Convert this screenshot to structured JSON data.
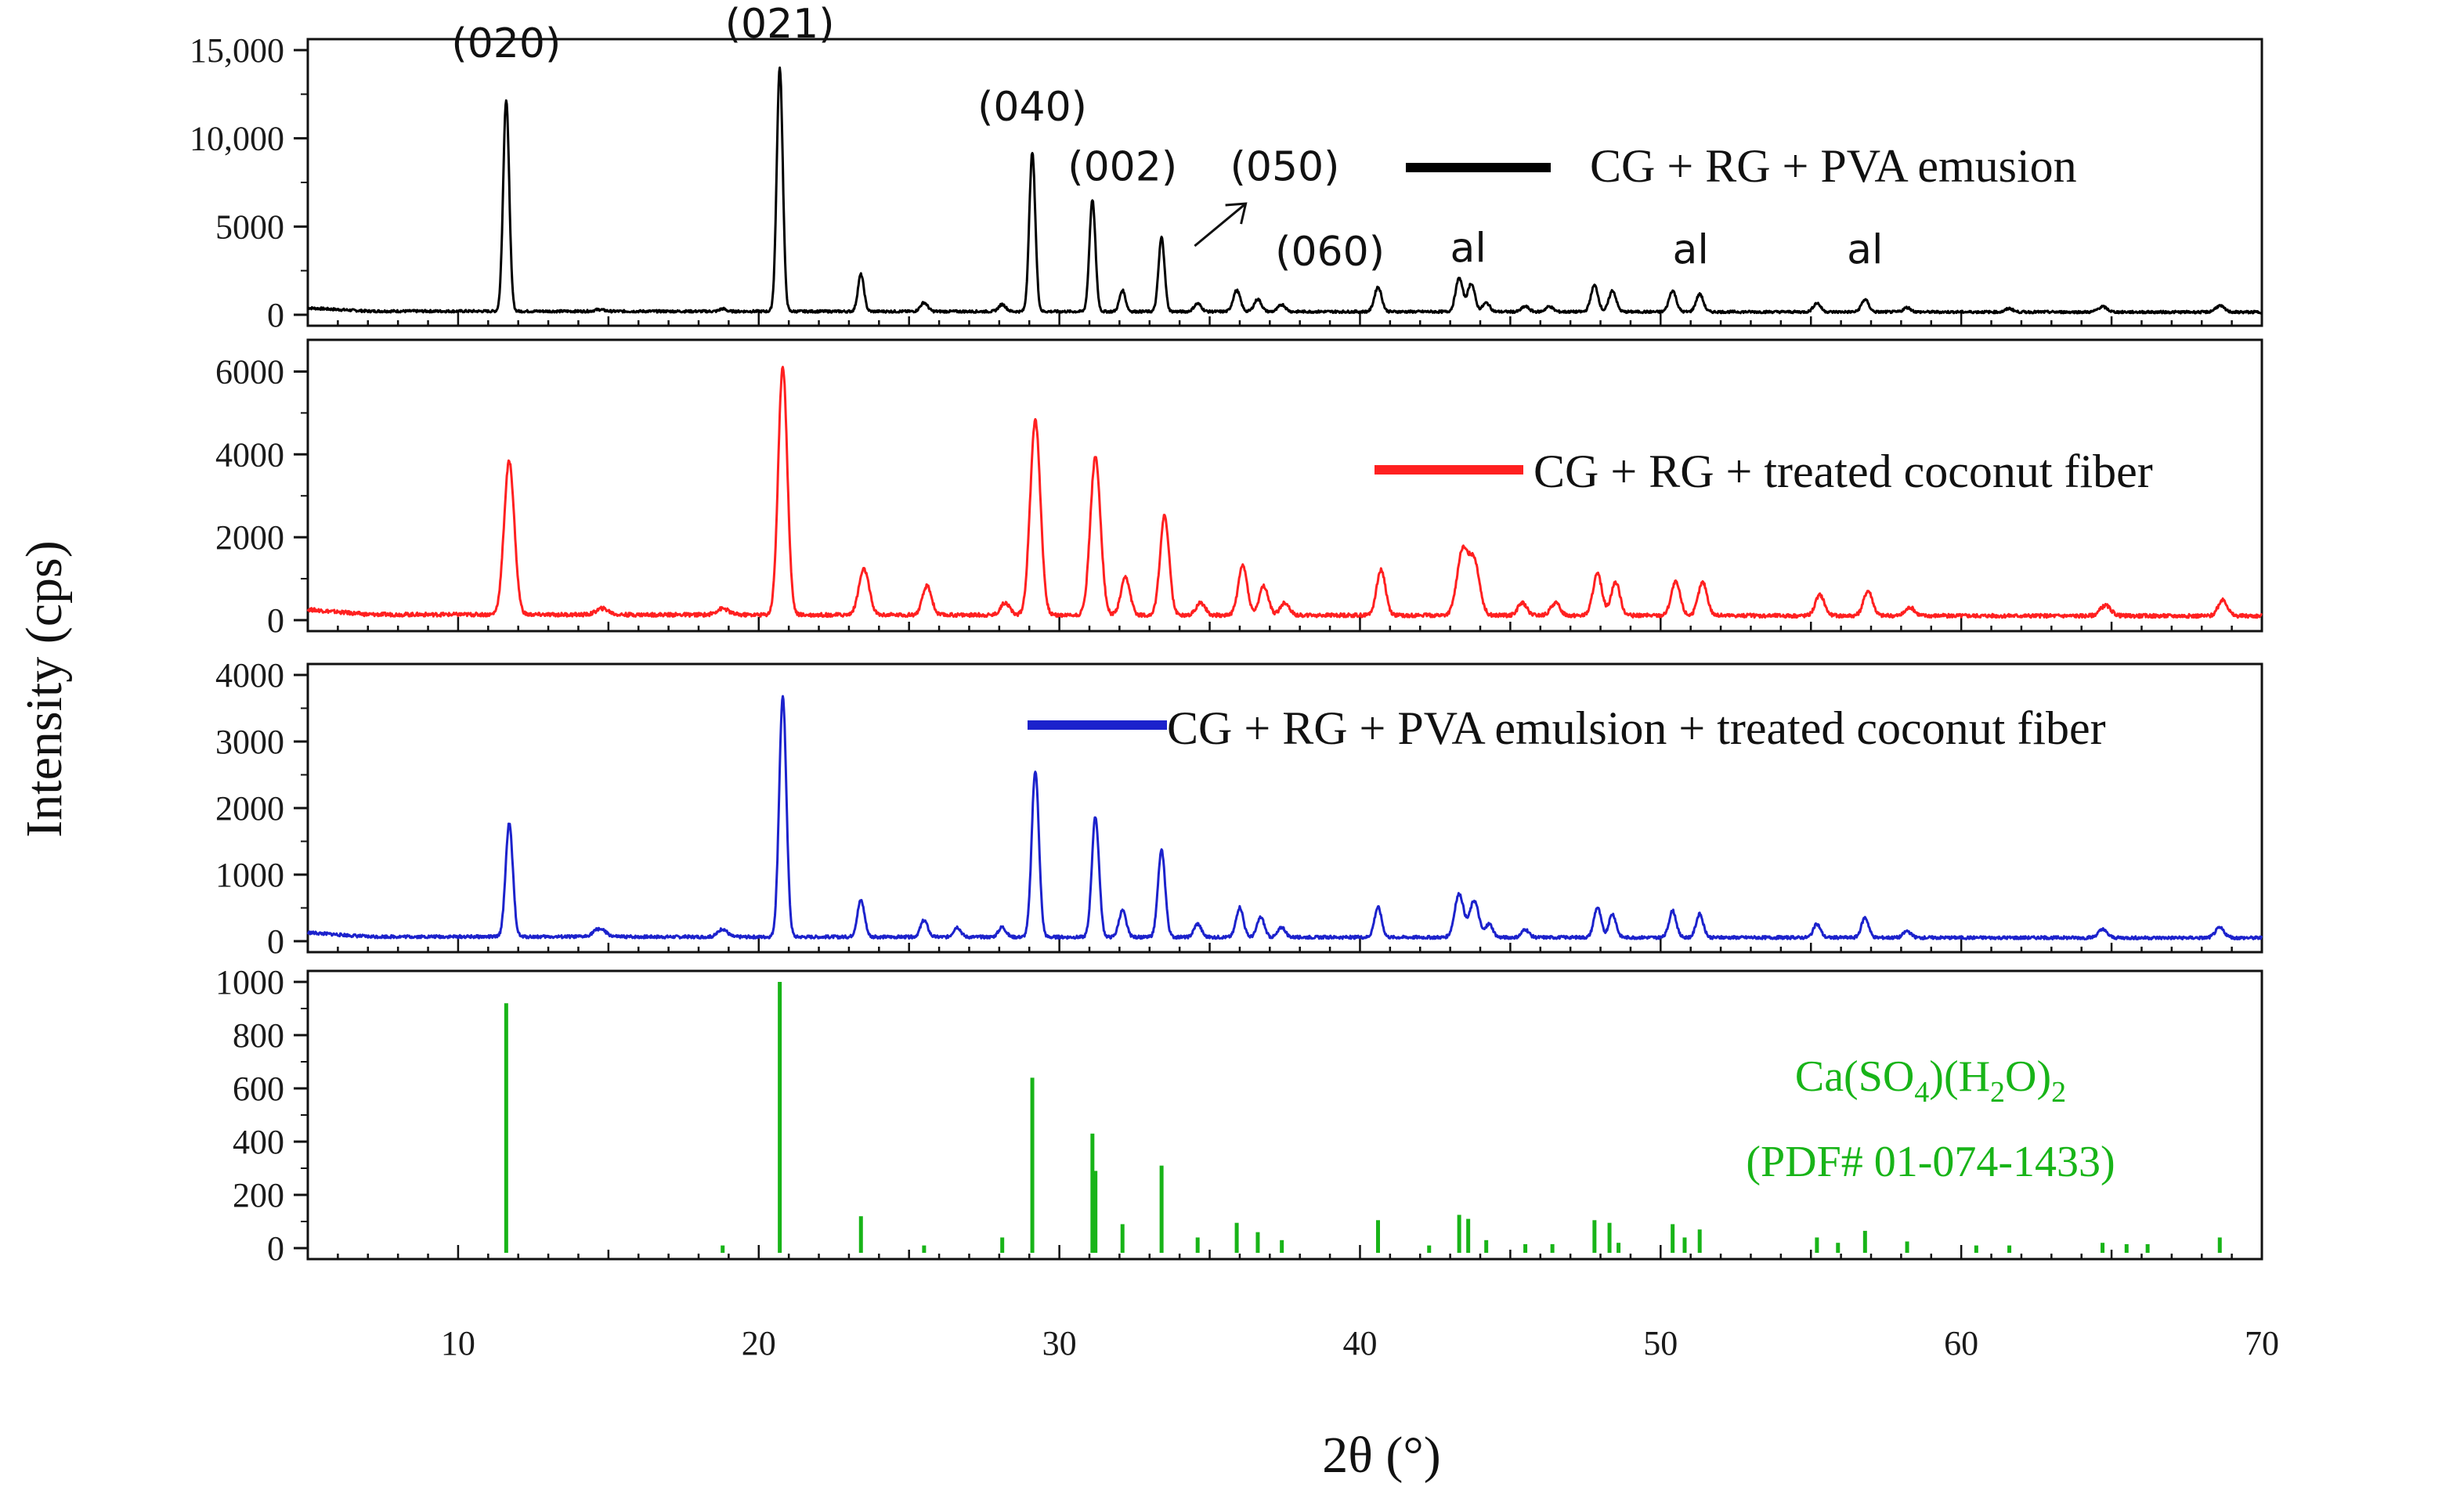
{
  "chart_data": {
    "type": "line",
    "title": "",
    "xlabel": "2θ (°)",
    "ylabel": "Intensity (cps)",
    "xlim": [
      5,
      70
    ],
    "x_ticks": [
      "10",
      "20",
      "30",
      "40",
      "50",
      "60",
      "70"
    ],
    "colors": {
      "cg_rg_pva": "#000000",
      "cg_rg_fiber": "#ff2020",
      "cg_rg_pva_fiber": "#1c22cc",
      "reference": "#18b418"
    },
    "panels": [
      {
        "id": "cg_rg_pva",
        "legend": "CG + RG + PVA emusion",
        "ylim": [
          0,
          15000
        ],
        "y_ticks": [
          "0",
          "5000",
          "10,000",
          "15,000"
        ],
        "y_tick_values": [
          0,
          5000,
          10000,
          15000
        ],
        "baseline": 150,
        "peaks": [
          [
            11.6,
            12000,
            0.1
          ],
          [
            14.7,
            100,
            0.15
          ],
          [
            18.8,
            150,
            0.1
          ],
          [
            20.7,
            13800,
            0.1
          ],
          [
            23.4,
            2100,
            0.1
          ],
          [
            25.5,
            500,
            0.12
          ],
          [
            28.1,
            400,
            0.12
          ],
          [
            29.1,
            9000,
            0.1
          ],
          [
            31.1,
            6300,
            0.1
          ],
          [
            32.1,
            1200,
            0.1
          ],
          [
            33.4,
            4200,
            0.1
          ],
          [
            34.6,
            450,
            0.12
          ],
          [
            35.9,
            1200,
            0.12
          ],
          [
            36.6,
            700,
            0.12
          ],
          [
            37.4,
            400,
            0.12
          ],
          [
            40.6,
            1400,
            0.12
          ],
          [
            43.3,
            1900,
            0.12
          ],
          [
            43.7,
            1600,
            0.12
          ],
          [
            44.2,
            500,
            0.12
          ],
          [
            45.5,
            300,
            0.12
          ],
          [
            46.3,
            300,
            0.12
          ],
          [
            47.8,
            1500,
            0.12
          ],
          [
            48.4,
            1200,
            0.12
          ],
          [
            50.4,
            1200,
            0.12
          ],
          [
            51.3,
            1000,
            0.12
          ],
          [
            55.2,
            500,
            0.12
          ],
          [
            56.8,
            700,
            0.12
          ],
          [
            58.2,
            250,
            0.12
          ],
          [
            61.6,
            200,
            0.12
          ],
          [
            64.7,
            300,
            0.15
          ],
          [
            68.6,
            350,
            0.15
          ]
        ],
        "annotations": [
          {
            "label": "(020)",
            "x": 11.6,
            "y": 14600
          },
          {
            "label": "(021)",
            "x": 20.7,
            "y": 15700
          },
          {
            "label": "(040)",
            "x": 29.1,
            "y": 11000
          },
          {
            "label": "(002)",
            "x": 32.1,
            "y": 7600
          },
          {
            "label": "(050)",
            "x": 37.5,
            "y": 7600
          },
          {
            "label": "(060)",
            "x": 39.0,
            "y": 2800
          },
          {
            "label": "al",
            "x": 43.6,
            "y": 3000
          },
          {
            "label": "al",
            "x": 51.0,
            "y": 2900
          },
          {
            "label": "al",
            "x": 56.8,
            "y": 2900
          }
        ]
      },
      {
        "id": "cg_rg_fiber",
        "legend": "CG + RG + treated coconut fiber",
        "ylim": [
          0,
          6500
        ],
        "y_ticks": [
          "0",
          "2000",
          "4000",
          "6000"
        ],
        "y_tick_values": [
          0,
          2000,
          4000,
          6000
        ],
        "baseline": 100,
        "peaks": [
          [
            11.7,
            3700,
            0.17
          ],
          [
            14.8,
            150,
            0.2
          ],
          [
            18.8,
            150,
            0.2
          ],
          [
            20.8,
            6000,
            0.15
          ],
          [
            23.5,
            1100,
            0.17
          ],
          [
            25.6,
            700,
            0.15
          ],
          [
            28.2,
            300,
            0.15
          ],
          [
            29.2,
            4700,
            0.17
          ],
          [
            31.2,
            3800,
            0.17
          ],
          [
            32.2,
            900,
            0.15
          ],
          [
            33.5,
            2400,
            0.15
          ],
          [
            34.7,
            300,
            0.15
          ],
          [
            36.1,
            1200,
            0.15
          ],
          [
            36.8,
            700,
            0.15
          ],
          [
            37.5,
            300,
            0.15
          ],
          [
            40.7,
            1100,
            0.15
          ],
          [
            43.4,
            1500,
            0.18
          ],
          [
            43.8,
            1300,
            0.18
          ],
          [
            45.4,
            300,
            0.15
          ],
          [
            46.5,
            300,
            0.15
          ],
          [
            47.9,
            1000,
            0.15
          ],
          [
            48.5,
            800,
            0.15
          ],
          [
            50.5,
            800,
            0.15
          ],
          [
            51.4,
            800,
            0.15
          ],
          [
            55.3,
            500,
            0.15
          ],
          [
            56.9,
            600,
            0.15
          ],
          [
            58.3,
            200,
            0.15
          ],
          [
            64.8,
            250,
            0.18
          ],
          [
            68.7,
            400,
            0.15
          ]
        ]
      },
      {
        "id": "cg_rg_pva_fiber",
        "legend": "CG + RG + PVA emulsion + treated coconut fiber",
        "ylim": [
          0,
          4000
        ],
        "y_ticks": [
          "0",
          "1000",
          "2000",
          "3000",
          "4000"
        ],
        "y_tick_values": [
          0,
          1000,
          2000,
          3000,
          4000
        ],
        "baseline": 50,
        "peaks": [
          [
            11.7,
            1700,
            0.12
          ],
          [
            14.7,
            120,
            0.2
          ],
          [
            18.8,
            120,
            0.15
          ],
          [
            20.8,
            3600,
            0.12
          ],
          [
            23.4,
            550,
            0.12
          ],
          [
            25.5,
            250,
            0.12
          ],
          [
            26.6,
            150,
            0.12
          ],
          [
            28.1,
            150,
            0.12
          ],
          [
            29.2,
            2500,
            0.12
          ],
          [
            31.2,
            1800,
            0.12
          ],
          [
            32.1,
            400,
            0.12
          ],
          [
            33.4,
            1300,
            0.12
          ],
          [
            34.6,
            200,
            0.12
          ],
          [
            36.0,
            450,
            0.12
          ],
          [
            36.7,
            300,
            0.12
          ],
          [
            37.4,
            150,
            0.12
          ],
          [
            40.6,
            450,
            0.12
          ],
          [
            43.3,
            650,
            0.15
          ],
          [
            43.8,
            550,
            0.15
          ],
          [
            44.3,
            200,
            0.12
          ],
          [
            45.5,
            120,
            0.12
          ],
          [
            47.9,
            450,
            0.12
          ],
          [
            48.4,
            350,
            0.12
          ],
          [
            50.4,
            400,
            0.12
          ],
          [
            51.3,
            350,
            0.12
          ],
          [
            55.2,
            200,
            0.12
          ],
          [
            56.8,
            300,
            0.12
          ],
          [
            58.2,
            100,
            0.12
          ],
          [
            64.7,
            120,
            0.15
          ],
          [
            68.6,
            150,
            0.15
          ]
        ]
      },
      {
        "id": "reference",
        "legend": "Ca(SO4)(H2O)2 (PDF# 01-074-1433)",
        "legend_line1": "Ca(SO",
        "legend_sub1": "4",
        "legend_mid": ")(H",
        "legend_sub2": "2",
        "legend_mid2": "O)",
        "legend_sub3": "2",
        "legend_line2": "(PDF# 01-074-1433)",
        "ylim": [
          0,
          1000
        ],
        "y_ticks": [
          "0",
          "200",
          "400",
          "600",
          "800",
          "1000"
        ],
        "y_tick_values": [
          0,
          200,
          400,
          600,
          800,
          1000
        ],
        "sticks": [
          [
            11.6,
            920
          ],
          [
            18.8,
            10
          ],
          [
            20.7,
            1000
          ],
          [
            23.4,
            120
          ],
          [
            25.5,
            10
          ],
          [
            28.1,
            40
          ],
          [
            29.1,
            640
          ],
          [
            31.1,
            430
          ],
          [
            31.2,
            290
          ],
          [
            32.1,
            90
          ],
          [
            33.4,
            310
          ],
          [
            34.6,
            40
          ],
          [
            35.9,
            95
          ],
          [
            36.6,
            60
          ],
          [
            37.4,
            30
          ],
          [
            40.6,
            105
          ],
          [
            42.3,
            10
          ],
          [
            43.3,
            125
          ],
          [
            43.6,
            110
          ],
          [
            44.2,
            30
          ],
          [
            45.5,
            15
          ],
          [
            46.4,
            15
          ],
          [
            47.8,
            105
          ],
          [
            48.3,
            95
          ],
          [
            48.6,
            20
          ],
          [
            50.4,
            90
          ],
          [
            50.8,
            40
          ],
          [
            51.3,
            70
          ],
          [
            55.2,
            40
          ],
          [
            55.9,
            20
          ],
          [
            56.8,
            65
          ],
          [
            58.2,
            25
          ],
          [
            60.5,
            10
          ],
          [
            61.6,
            10
          ],
          [
            64.7,
            20
          ],
          [
            65.5,
            15
          ],
          [
            66.2,
            15
          ],
          [
            68.6,
            40
          ]
        ]
      }
    ]
  }
}
